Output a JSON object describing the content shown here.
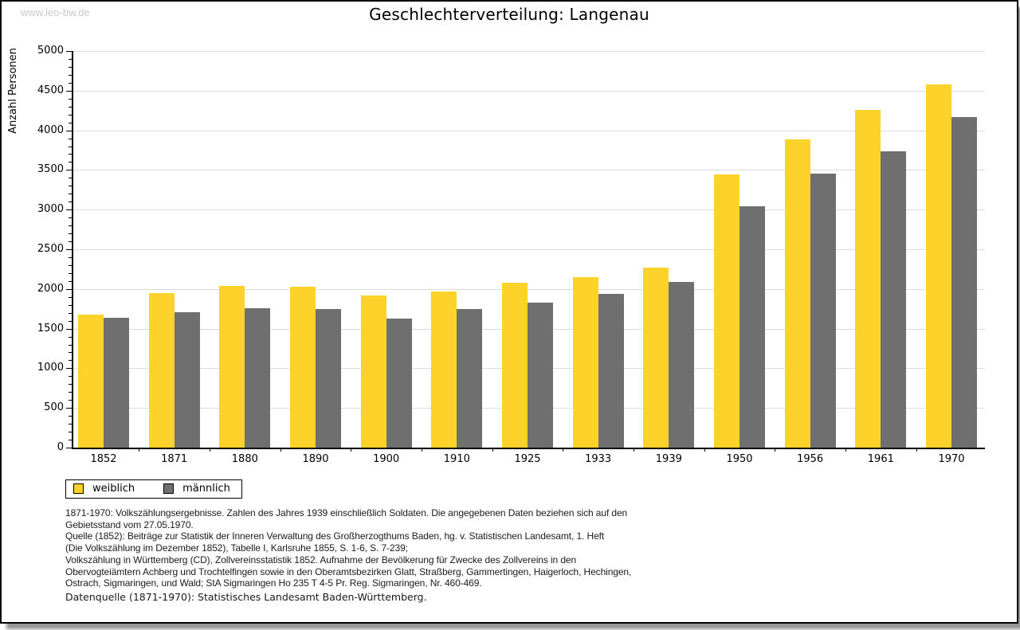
{
  "watermark": "www.leo-bw.de",
  "title": "Geschlechterverteilung: Langenau",
  "chart_data": {
    "type": "bar",
    "title": "Geschlechterverteilung: Langenau",
    "ylabel": "Anzahl Personen",
    "xlabel": "",
    "categories": [
      "1852",
      "1871",
      "1880",
      "1890",
      "1900",
      "1910",
      "1925",
      "1933",
      "1939",
      "1950",
      "1956",
      "1961",
      "1970"
    ],
    "series": [
      {
        "name": "weiblich",
        "color": "#FCD22B",
        "values": [
          1680,
          1950,
          2040,
          2030,
          1920,
          1970,
          2080,
          2150,
          2270,
          3440,
          3890,
          4260,
          4580
        ]
      },
      {
        "name": "männlich",
        "color": "#6F6F6F",
        "values": [
          1640,
          1710,
          1760,
          1750,
          1630,
          1750,
          1830,
          1940,
          2090,
          3040,
          3450,
          3730,
          4170
        ]
      }
    ],
    "ylim": [
      0,
      5000
    ],
    "y_major_step": 500,
    "y_minor_step": 100,
    "grid": "horizontal-major",
    "legend_position": "bottom-left"
  },
  "footnotes": [
    "1871-1970: Volkszählungsergebnisse. Zahlen des Jahres 1939 einschließlich Soldaten. Die angegebenen Daten beziehen sich auf den",
    "Gebietsstand vom 27.05.1970.",
    "Quelle (1852): Beiträge zur Statistik der Inneren Verwaltung des Großherzogthums Baden, hg. v. Statistischen Landesamt, 1. Heft",
    "(Die Volkszählung im Dezember 1852), Tabelle I, Karlsruhe 1855, S. 1-6, S. 7-239;",
    "Volkszählung in Württemberg (CD), Zollvereinsstatistik 1852. Aufnahme der Bevölkerung für Zwecke des Zollvereins in den",
    "Obervogteiämtern Achberg und Trochtelfingen sowie in den Oberamtsbezirken Glatt, Straßberg, Gammertingen, Haigerloch, Hechingen,",
    "Ostrach, Sigmaringen, und Wald; StA Sigmaringen Ho 235 T 4-5 Pr. Reg. Sigmaringen, Nr. 460-469."
  ],
  "datasource": "Datenquelle (1871-1970): Statistisches Landesamt Baden-Württemberg.",
  "colors": {
    "bar_female": "#FCD22B",
    "bar_male": "#6F6F6F",
    "gridline": "#DCDCDC",
    "axis": "#000000",
    "watermark": "#C9C9C9",
    "shadow": "#828282"
  }
}
